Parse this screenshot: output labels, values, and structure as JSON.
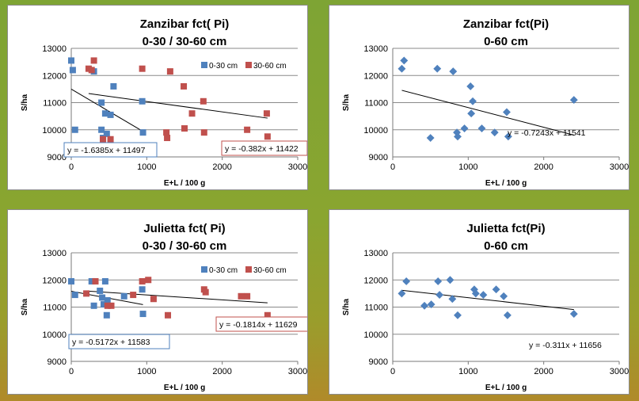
{
  "chart_data": [
    {
      "id": "c1",
      "type": "scatter",
      "title": [
        "Zanzibar fct( Pi)",
        "0-30 /  30-60 cm"
      ],
      "xlabel": "E+L / 100 g",
      "ylabel": "S/ha",
      "xlim": [
        0,
        3000
      ],
      "ylim": [
        9000,
        13000
      ],
      "xticks": [
        0,
        1000,
        2000,
        3000
      ],
      "yticks": [
        9000,
        10000,
        11000,
        12000,
        13000
      ],
      "legend": "top-right",
      "series": [
        {
          "name": "0-30 cm",
          "color": "#4f81bd",
          "marker": "square",
          "points": [
            [
              0,
              12550
            ],
            [
              20,
              12200
            ],
            [
              50,
              10000
            ],
            [
              300,
              12150
            ],
            [
              400,
              11000
            ],
            [
              400,
              10000
            ],
            [
              420,
              9700
            ],
            [
              450,
              10600
            ],
            [
              470,
              9850
            ],
            [
              520,
              10550
            ],
            [
              560,
              11600
            ],
            [
              940,
              11050
            ],
            [
              950,
              9900
            ]
          ],
          "trendline": {
            "x": [
              0,
              950
            ],
            "slope": -1.6385,
            "intercept": 11497
          },
          "equation": "y = -1.6385x + 11497"
        },
        {
          "name": "30-60 cm",
          "color": "#c0504d",
          "marker": "square",
          "points": [
            [
              230,
              12250
            ],
            [
              270,
              12200
            ],
            [
              300,
              12550
            ],
            [
              420,
              9650
            ],
            [
              520,
              9650
            ],
            [
              940,
              12250
            ],
            [
              1260,
              9900
            ],
            [
              1270,
              9700
            ],
            [
              1310,
              12150
            ],
            [
              1490,
              11600
            ],
            [
              1500,
              10050
            ],
            [
              1600,
              10600
            ],
            [
              1750,
              11050
            ],
            [
              1760,
              9900
            ],
            [
              2330,
              10000
            ],
            [
              2590,
              10600
            ],
            [
              2600,
              9750
            ]
          ],
          "trendline": {
            "x": [
              230,
              2600
            ],
            "slope": -0.382,
            "intercept": 11422
          },
          "equation": "y = -0.382x + 11422"
        }
      ]
    },
    {
      "id": "c2",
      "type": "scatter",
      "title": [
        "Zanzibar fct(Pi)",
        "0-60 cm"
      ],
      "xlabel": "E+L / 100 g",
      "ylabel": "S/ha",
      "xlim": [
        0,
        3000
      ],
      "ylim": [
        9000,
        13000
      ],
      "xticks": [
        0,
        1000,
        2000,
        3000
      ],
      "yticks": [
        9000,
        10000,
        11000,
        12000,
        13000
      ],
      "series": [
        {
          "name": "",
          "color": "#4f81bd",
          "marker": "diamond",
          "points": [
            [
              120,
              12250
            ],
            [
              150,
              12550
            ],
            [
              500,
              9700
            ],
            [
              590,
              12250
            ],
            [
              800,
              12150
            ],
            [
              850,
              9900
            ],
            [
              860,
              9750
            ],
            [
              950,
              10050
            ],
            [
              1030,
              11600
            ],
            [
              1040,
              10600
            ],
            [
              1060,
              11050
            ],
            [
              1180,
              10050
            ],
            [
              1350,
              9900
            ],
            [
              1510,
              10650
            ],
            [
              1530,
              9750
            ],
            [
              2400,
              11100
            ]
          ],
          "trendline": {
            "x": [
              120,
              2400
            ],
            "slope": -0.7243,
            "intercept": 11541
          },
          "equation": "y = -0.7243x + 11541"
        }
      ]
    },
    {
      "id": "c3",
      "type": "scatter",
      "title": [
        "Julietta fct( Pi)",
        "0-30 /  30-60 cm"
      ],
      "xlabel": "E+L / 100 g",
      "ylabel": "S/ha",
      "xlim": [
        0,
        3000
      ],
      "ylim": [
        9000,
        13000
      ],
      "xticks": [
        0,
        1000,
        2000,
        3000
      ],
      "yticks": [
        9000,
        10000,
        11000,
        12000,
        13000
      ],
      "legend": "top-right",
      "series": [
        {
          "name": "0-30 cm",
          "color": "#4f81bd",
          "marker": "square",
          "points": [
            [
              0,
              11950
            ],
            [
              50,
              11450
            ],
            [
              270,
              11950
            ],
            [
              300,
              11050
            ],
            [
              380,
              11600
            ],
            [
              410,
              11350
            ],
            [
              430,
              11100
            ],
            [
              450,
              11950
            ],
            [
              470,
              10700
            ],
            [
              480,
              11250
            ],
            [
              700,
              11400
            ],
            [
              940,
              11650
            ],
            [
              950,
              10750
            ]
          ],
          "trendline": {
            "x": [
              0,
              950
            ],
            "slope": -0.5172,
            "intercept": 11583
          },
          "equation": "y = -0.5172x + 11583"
        },
        {
          "name": "30-60 cm",
          "color": "#c0504d",
          "marker": "square",
          "points": [
            [
              200,
              11500
            ],
            [
              320,
              11950
            ],
            [
              480,
              11050
            ],
            [
              530,
              11050
            ],
            [
              820,
              11450
            ],
            [
              940,
              11950
            ],
            [
              1020,
              12000
            ],
            [
              1090,
              11300
            ],
            [
              1280,
              10700
            ],
            [
              1760,
              11650
            ],
            [
              1780,
              11550
            ],
            [
              2250,
              11400
            ],
            [
              2330,
              11400
            ],
            [
              2600,
              10700
            ]
          ],
          "trendline": {
            "x": [
              200,
              2600
            ],
            "slope": -0.1814,
            "intercept": 11629
          },
          "equation": "y = -0.1814x + 11629"
        }
      ]
    },
    {
      "id": "c4",
      "type": "scatter",
      "title": [
        "Julietta fct(Pi)",
        "0-60 cm"
      ],
      "xlabel": "E+L / 100 g",
      "ylabel": "S/ha",
      "xlim": [
        0,
        3000
      ],
      "ylim": [
        9000,
        13000
      ],
      "xticks": [
        0,
        1000,
        2000,
        3000
      ],
      "yticks": [
        9000,
        10000,
        11000,
        12000,
        13000
      ],
      "series": [
        {
          "name": "",
          "color": "#4f81bd",
          "marker": "diamond",
          "points": [
            [
              120,
              11500
            ],
            [
              180,
              11950
            ],
            [
              420,
              11050
            ],
            [
              510,
              11100
            ],
            [
              600,
              11950
            ],
            [
              620,
              11450
            ],
            [
              760,
              12000
            ],
            [
              790,
              11300
            ],
            [
              860,
              10700
            ],
            [
              1080,
              11650
            ],
            [
              1100,
              11500
            ],
            [
              1200,
              11450
            ],
            [
              1370,
              11650
            ],
            [
              1470,
              11400
            ],
            [
              1520,
              10700
            ],
            [
              2400,
              10750
            ]
          ],
          "trendline": {
            "x": [
              120,
              2400
            ],
            "slope": -0.311,
            "intercept": 11656
          },
          "equation": "y = -0.311x + 11656"
        }
      ]
    }
  ]
}
